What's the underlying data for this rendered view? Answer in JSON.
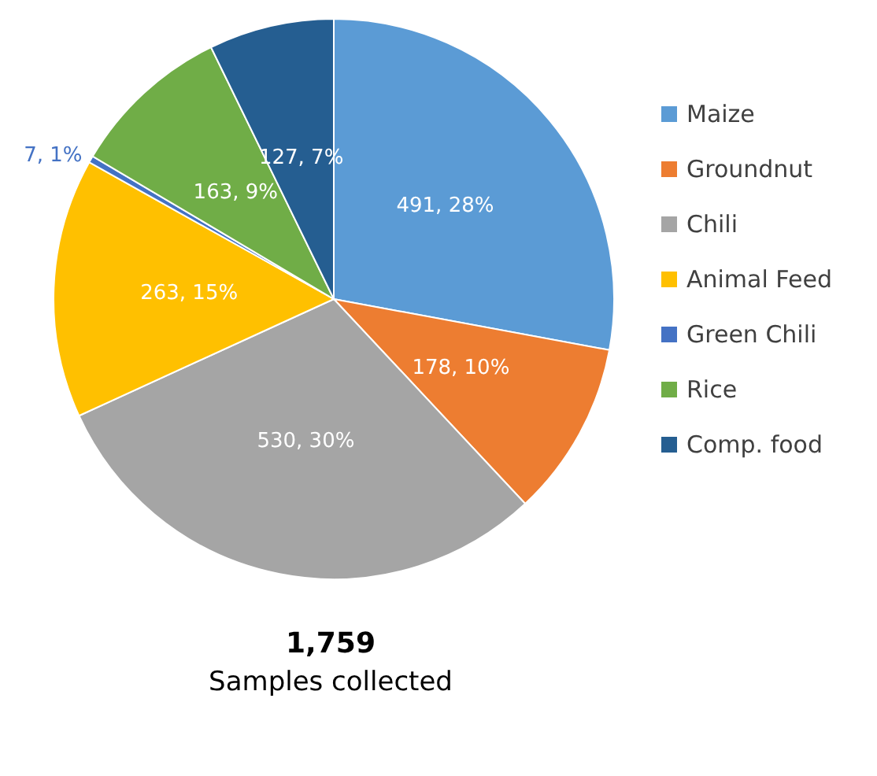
{
  "chart_data": {
    "type": "pie",
    "categories": [
      "Maize",
      "Groundnut",
      "Chili",
      "Animal Feed",
      "Green Chili",
      "Rice",
      "Comp. food"
    ],
    "values": [
      491,
      178,
      530,
      263,
      7,
      163,
      127
    ],
    "colors": [
      "#5b9bd5",
      "#ed7d31",
      "#a5a5a5",
      "#ffc000",
      "#4472c4",
      "#70ad47",
      "#255e91"
    ],
    "value_labels": [
      "491, 28%",
      "178, 10%",
      "530, 30%",
      "263, 15%",
      "7, 1%",
      "163, 9%",
      "127, 7%"
    ],
    "legend": "right",
    "annotations": [
      "1,759",
      "Samples collected"
    ]
  }
}
